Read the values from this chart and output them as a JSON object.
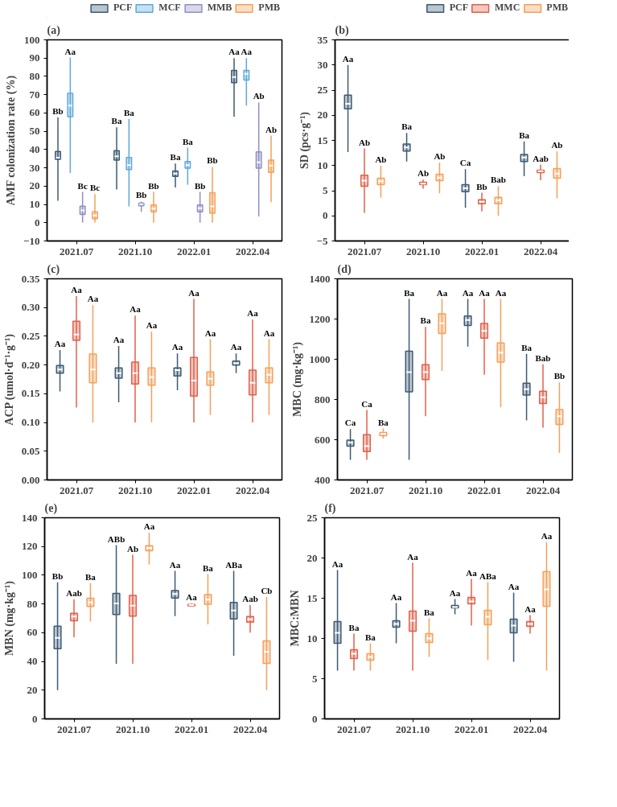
{
  "chart_data": [
    {
      "type": "box",
      "title": "(a)",
      "ylabel": "AMF colonization rate (%)",
      "categories": [
        "2021.07",
        "2021.10",
        "2022.01",
        "2022.04"
      ],
      "ylim": [
        -10,
        100
      ],
      "yticks": [
        {
          "value": -10,
          "label": "−10"
        },
        0,
        10,
        20,
        30,
        40,
        50,
        60,
        70,
        80,
        90,
        100
      ],
      "legend": "top right",
      "series": [
        {
          "name": "PCF",
          "color": "#3d5a73",
          "value_labels": [
            "Bb",
            "Ba",
            "Ba",
            "Aa"
          ],
          "boxes": [
            {
              "low": 12,
              "q1": 34.7,
              "median": 35.5,
              "q3": 39,
              "high": 57.7
            },
            {
              "low": 18.2,
              "q1": 34.2,
              "median": 36.3,
              "q3": 39.4,
              "high": 52.1
            },
            {
              "low": 19.3,
              "q1": 25.3,
              "median": 26.8,
              "q3": 28.3,
              "high": 32.3
            },
            {
              "low": 58,
              "q1": 76.6,
              "median": 79.6,
              "q3": 83.3,
              "high": 90
            }
          ]
        },
        {
          "name": "MCF",
          "color": "#5fa8d9",
          "value_labels": [
            "Aa",
            "Ba",
            "Ba",
            "Aa"
          ],
          "boxes": [
            {
              "low": 27.2,
              "q1": 58,
              "median": 64,
              "q3": 70.7,
              "high": 90.3
            },
            {
              "low": 8.9,
              "q1": 29,
              "median": 31.5,
              "q3": 35.7,
              "high": 56.8
            },
            {
              "low": 20.8,
              "q1": 29.8,
              "median": 31.5,
              "q3": 33.5,
              "high": 41
            },
            {
              "low": 64,
              "q1": 78,
              "median": 81.4,
              "q3": 83.3,
              "high": 90
            }
          ]
        },
        {
          "name": "MMB",
          "color": "#8f8fc4",
          "value_labels": [
            "Bc",
            "Bb",
            "Bb",
            "Ab"
          ],
          "boxes": [
            {
              "low": 0,
              "q1": 4.5,
              "median": 6.7,
              "q3": 9,
              "high": 16.8
            },
            {
              "low": 6,
              "q1": 9.2,
              "median": 10,
              "q3": 10.7,
              "high": 11.6
            },
            {
              "low": 0,
              "q1": 6,
              "median": 7.9,
              "q3": 9.7,
              "high": 16.8
            },
            {
              "low": 3.4,
              "q1": 29.8,
              "median": 33,
              "q3": 38.7,
              "high": 65.8
            }
          ]
        },
        {
          "name": "PMB",
          "color": "#f5a05a",
          "value_labels": [
            "Bc",
            "Bb",
            "Bb",
            "Ab"
          ],
          "boxes": [
            {
              "low": 0,
              "q1": 2.2,
              "median": 4,
              "q3": 6,
              "high": 15.6
            },
            {
              "low": 0,
              "q1": 6,
              "median": 7.7,
              "q3": 9.7,
              "high": 16.8
            },
            {
              "low": 0,
              "q1": 5.2,
              "median": 8.9,
              "q3": 16.4,
              "high": 30.5
            },
            {
              "low": 11.2,
              "q1": 27.5,
              "median": 31.3,
              "q3": 34.2,
              "high": 47.6
            }
          ]
        }
      ]
    },
    {
      "type": "box",
      "title": "(b)",
      "ylabel": "SD (pcs·g⁻¹)",
      "categories": [
        "2021.07",
        "2021.10",
        "2022.01",
        "2022.04"
      ],
      "ylim": [
        -5,
        35
      ],
      "yticks": [
        {
          "value": -5,
          "label": "−5"
        },
        0,
        5,
        10,
        15,
        20,
        25,
        30,
        35
      ],
      "legend": "top right",
      "series": [
        {
          "name": "PCF",
          "color": "#3d5a73",
          "value_labels": [
            "Aa",
            "Ba",
            "Ca",
            "Ba"
          ],
          "boxes": [
            {
              "low": 12.7,
              "q1": 21.3,
              "median": 22.3,
              "q3": 24,
              "high": 30
            },
            {
              "low": 10.8,
              "q1": 12.9,
              "median": 13.6,
              "q3": 14.3,
              "high": 16.5
            },
            {
              "low": 1.6,
              "q1": 4.8,
              "median": 5.5,
              "q3": 6.2,
              "high": 9.3
            },
            {
              "low": 7.9,
              "q1": 10.8,
              "median": 11.6,
              "q3": 12.2,
              "high": 14.8
            }
          ]
        },
        {
          "name": "MMC",
          "color": "#e0604a",
          "value_labels": [
            "Ab",
            "Ab",
            "Bb",
            "Aab"
          ],
          "boxes": [
            {
              "low": 0.6,
              "q1": 5.9,
              "median": 7,
              "q3": 8.1,
              "high": 13.4
            },
            {
              "low": 5.4,
              "q1": 6.2,
              "median": 6.4,
              "q3": 6.7,
              "high": 7.2
            },
            {
              "low": 0.9,
              "q1": 2.4,
              "median": 2.8,
              "q3": 3.2,
              "high": 4.6
            },
            {
              "low": 7.1,
              "q1": 8.6,
              "median": 8.9,
              "q3": 9.1,
              "high": 10.2
            }
          ]
        },
        {
          "name": "PMB",
          "color": "#f5a05a",
          "value_labels": [
            "Ab",
            "Ab",
            "Bab",
            "Ab"
          ],
          "boxes": [
            {
              "low": 3.6,
              "q1": 6.2,
              "median": 6.9,
              "q3": 7.5,
              "high": 10
            },
            {
              "low": 4.5,
              "q1": 7,
              "median": 7.6,
              "q3": 8.3,
              "high": 10.6
            },
            {
              "low": 0,
              "q1": 2.4,
              "median": 3.1,
              "q3": 3.7,
              "high": 5.9
            },
            {
              "low": 3.5,
              "q1": 7.5,
              "median": 8.4,
              "q3": 9.4,
              "high": 12.8
            }
          ]
        }
      ]
    },
    {
      "type": "box",
      "title": "(c)",
      "ylabel": "ACP (umol·d⁻¹·g⁻¹)",
      "categories": [
        "2021.07",
        "2021.10",
        "2022.01",
        "2022.04"
      ],
      "ylim": [
        0,
        0.35
      ],
      "yticks": [
        {
          "value": 0,
          "label": "0.00"
        },
        {
          "value": 0.05,
          "label": "0.05"
        },
        {
          "value": 0.1,
          "label": "0.10"
        },
        {
          "value": 0.15,
          "label": "0.15"
        },
        {
          "value": 0.2,
          "label": "0.20"
        },
        {
          "value": 0.25,
          "label": "0.25"
        },
        {
          "value": 0.3,
          "label": "0.30"
        },
        {
          "value": 0.35,
          "label": "0.35"
        }
      ],
      "series": [
        {
          "color": "#3d5a73",
          "value_labels": [
            "Aa",
            "Aa",
            "Aa",
            "Aa"
          ],
          "boxes": [
            {
              "low": 0.154,
              "q1": 0.186,
              "median": 0.192,
              "q3": 0.199,
              "high": 0.226
            },
            {
              "low": 0.135,
              "q1": 0.177,
              "median": 0.186,
              "q3": 0.195,
              "high": 0.233
            },
            {
              "low": 0.156,
              "q1": 0.181,
              "median": 0.191,
              "q3": 0.195,
              "high": 0.22
            },
            {
              "low": 0.186,
              "q1": 0.2,
              "median": 0.203,
              "q3": 0.207,
              "high": 0.22
            }
          ]
        },
        {
          "color": "#e0604a",
          "value_labels": [
            "Aa",
            "Aa",
            "Aa",
            "Aa"
          ],
          "boxes": [
            {
              "low": 0.126,
              "q1": 0.243,
              "median": 0.253,
              "q3": 0.276,
              "high": 0.32
            },
            {
              "low": 0.1,
              "q1": 0.167,
              "median": 0.186,
              "q3": 0.205,
              "high": 0.286
            },
            {
              "low": 0.1,
              "q1": 0.146,
              "median": 0.173,
              "q3": 0.213,
              "high": 0.315
            },
            {
              "low": 0.1,
              "q1": 0.148,
              "median": 0.169,
              "q3": 0.191,
              "high": 0.279
            }
          ]
        },
        {
          "color": "#f5a05a",
          "value_labels": [
            "Aa",
            "Aa",
            "Aa",
            "Aa"
          ],
          "boxes": [
            {
              "low": 0.1,
              "q1": 0.169,
              "median": 0.192,
              "q3": 0.219,
              "high": 0.304
            },
            {
              "low": 0.1,
              "q1": 0.165,
              "median": 0.179,
              "q3": 0.195,
              "high": 0.258
            },
            {
              "low": 0.113,
              "q1": 0.165,
              "median": 0.176,
              "q3": 0.188,
              "high": 0.245
            },
            {
              "low": 0.113,
              "q1": 0.169,
              "median": 0.183,
              "q3": 0.195,
              "high": 0.245
            }
          ]
        }
      ]
    },
    {
      "type": "box",
      "title": "(d)",
      "ylabel": "MBC (mg·kg⁻¹)",
      "categories": [
        "2021.07",
        "2021.10",
        "2022.01",
        "2022.04"
      ],
      "ylim": [
        400,
        1400
      ],
      "yticks": [
        400,
        600,
        800,
        1000,
        1200,
        1400
      ],
      "series": [
        {
          "color": "#3d5a73",
          "value_labels": [
            "Ca",
            "Ba",
            "Aa",
            "Ba"
          ],
          "boxes": [
            {
              "low": 500,
              "q1": 568,
              "median": 586,
              "q3": 598,
              "high": 653
            },
            {
              "low": 500,
              "q1": 838,
              "median": 936,
              "q3": 1040,
              "high": 1300
            },
            {
              "low": 1063,
              "q1": 1168,
              "median": 1195,
              "q3": 1215,
              "high": 1300
            },
            {
              "low": 696,
              "q1": 822,
              "median": 851,
              "q3": 881,
              "high": 1027
            }
          ]
        },
        {
          "color": "#e0604a",
          "value_labels": [
            "Ca",
            "Ba",
            "Aa",
            "Bab"
          ],
          "boxes": [
            {
              "low": 500,
              "q1": 541,
              "median": 568,
              "q3": 625,
              "high": 748
            },
            {
              "low": 717,
              "q1": 899,
              "median": 936,
              "q3": 973,
              "high": 1161
            },
            {
              "low": 923,
              "q1": 1105,
              "median": 1141,
              "q3": 1178,
              "high": 1300
            },
            {
              "low": 660,
              "q1": 780,
              "median": 811,
              "q3": 841,
              "high": 975
            }
          ]
        },
        {
          "color": "#f5a05a",
          "value_labels": [
            "Ba",
            "Aa",
            "Aa",
            "Bb"
          ],
          "boxes": [
            {
              "low": 606,
              "q1": 620,
              "median": 629,
              "q3": 636,
              "high": 656
            },
            {
              "low": 942,
              "q1": 1128,
              "median": 1179,
              "q3": 1226,
              "high": 1300
            },
            {
              "low": 761,
              "q1": 986,
              "median": 1033,
              "q3": 1081,
              "high": 1300
            },
            {
              "low": 535,
              "q1": 676,
              "median": 717,
              "q3": 750,
              "high": 885
            }
          ]
        }
      ]
    },
    {
      "type": "box",
      "title": "(e)",
      "ylabel": "MBN (mg·kg⁻¹)",
      "categories": [
        "2021.07",
        "2021.10",
        "2022.01",
        "2022.04"
      ],
      "ylim": [
        0,
        140
      ],
      "yticks": [
        0,
        20,
        40,
        60,
        80,
        100,
        120,
        140
      ],
      "series": [
        {
          "color": "#3d5a73",
          "value_labels": [
            "Bb",
            "ABb",
            "Aa",
            "ABa"
          ],
          "boxes": [
            {
              "low": 20,
              "q1": 48.8,
              "median": 56.4,
              "q3": 64.5,
              "high": 95
            },
            {
              "low": 38.3,
              "q1": 72.7,
              "median": 80.3,
              "q3": 87.4,
              "high": 120.9
            },
            {
              "low": 71.5,
              "q1": 84.2,
              "median": 87,
              "q3": 89.3,
              "high": 103
            },
            {
              "low": 44,
              "q1": 69.6,
              "median": 75.4,
              "q3": 81.1,
              "high": 103
            }
          ]
        },
        {
          "color": "#e0604a",
          "value_labels": [
            "Aab",
            "Ab",
            "Aa",
            "Aab"
          ],
          "boxes": [
            {
              "low": 56.8,
              "q1": 68.3,
              "median": 71.2,
              "q3": 73.5,
              "high": 83.2
            },
            {
              "low": 38.3,
              "q1": 71.5,
              "median": 78.8,
              "q3": 85.9,
              "high": 114.2
            },
            {
              "low": 78.2,
              "q1": 78.7,
              "median": 79.2,
              "q3": 79.7,
              "high": 80.2
            },
            {
              "low": 60.1,
              "q1": 67.3,
              "median": 69.3,
              "q3": 71.2,
              "high": 79.2
            }
          ]
        },
        {
          "color": "#f5a05a",
          "value_labels": [
            "Ba",
            "Aa",
            "Ba",
            "Cb"
          ],
          "boxes": [
            {
              "low": 67.7,
              "q1": 78.2,
              "median": 81.1,
              "q3": 84,
              "high": 94.5
            },
            {
              "low": 107.5,
              "q1": 117,
              "median": 119,
              "q3": 120.5,
              "high": 129.5
            },
            {
              "low": 65.8,
              "q1": 79.8,
              "median": 83,
              "q3": 86.5,
              "high": 100.8
            },
            {
              "low": 20,
              "q1": 38.7,
              "median": 46.7,
              "q3": 54.3,
              "high": 84.9
            }
          ]
        }
      ]
    },
    {
      "type": "box",
      "title": "(f)",
      "ylabel": "MBC:MBN",
      "categories": [
        "2021.07",
        "2021.10",
        "2022.01",
        "2022.04"
      ],
      "ylim": [
        0,
        25
      ],
      "yticks": [
        0,
        5,
        10,
        15,
        20,
        25
      ],
      "series": [
        {
          "color": "#3d5a73",
          "value_labels": [
            "Aa",
            "Aa",
            "Aa",
            "Aa"
          ],
          "boxes": [
            {
              "low": 6,
              "q1": 9.4,
              "median": 10.7,
              "q3": 12.1,
              "high": 18.5
            },
            {
              "low": 9.4,
              "q1": 11.4,
              "median": 11.8,
              "q3": 12.2,
              "high": 14.4
            },
            {
              "low": 13,
              "q1": 13.8,
              "median": 13.9,
              "q3": 14.1,
              "high": 14.9
            },
            {
              "low": 7.1,
              "q1": 10.7,
              "median": 11.6,
              "q3": 12.4,
              "high": 15.7
            }
          ]
        },
        {
          "color": "#e0604a",
          "value_labels": [
            "Ba",
            "Aa",
            "Aa",
            "Aa"
          ],
          "boxes": [
            {
              "low": 6,
              "q1": 7.5,
              "median": 8.1,
              "q3": 8.6,
              "high": 10.6
            },
            {
              "low": 6,
              "q1": 10.9,
              "median": 12.2,
              "q3": 13.4,
              "high": 19.4
            },
            {
              "low": 11.6,
              "q1": 14.3,
              "median": 14.6,
              "q3": 15.1,
              "high": 17.4
            },
            {
              "low": 10.6,
              "q1": 11.5,
              "median": 11.8,
              "q3": 12.1,
              "high": 12.9
            }
          ]
        },
        {
          "color": "#f5a05a",
          "value_labels": [
            "Ba",
            "Ba",
            "ABa",
            "Aa"
          ],
          "boxes": [
            {
              "low": 6,
              "q1": 7.3,
              "median": 7.7,
              "q3": 8.1,
              "high": 9.4
            },
            {
              "low": 7.7,
              "q1": 9.5,
              "median": 10,
              "q3": 10.6,
              "high": 12.5
            },
            {
              "low": 7.3,
              "q1": 11.7,
              "median": 12.7,
              "q3": 13.5,
              "high": 17
            },
            {
              "low": 6,
              "q1": 14,
              "median": 16.1,
              "q3": 18.3,
              "high": 22
            }
          ]
        }
      ]
    }
  ]
}
